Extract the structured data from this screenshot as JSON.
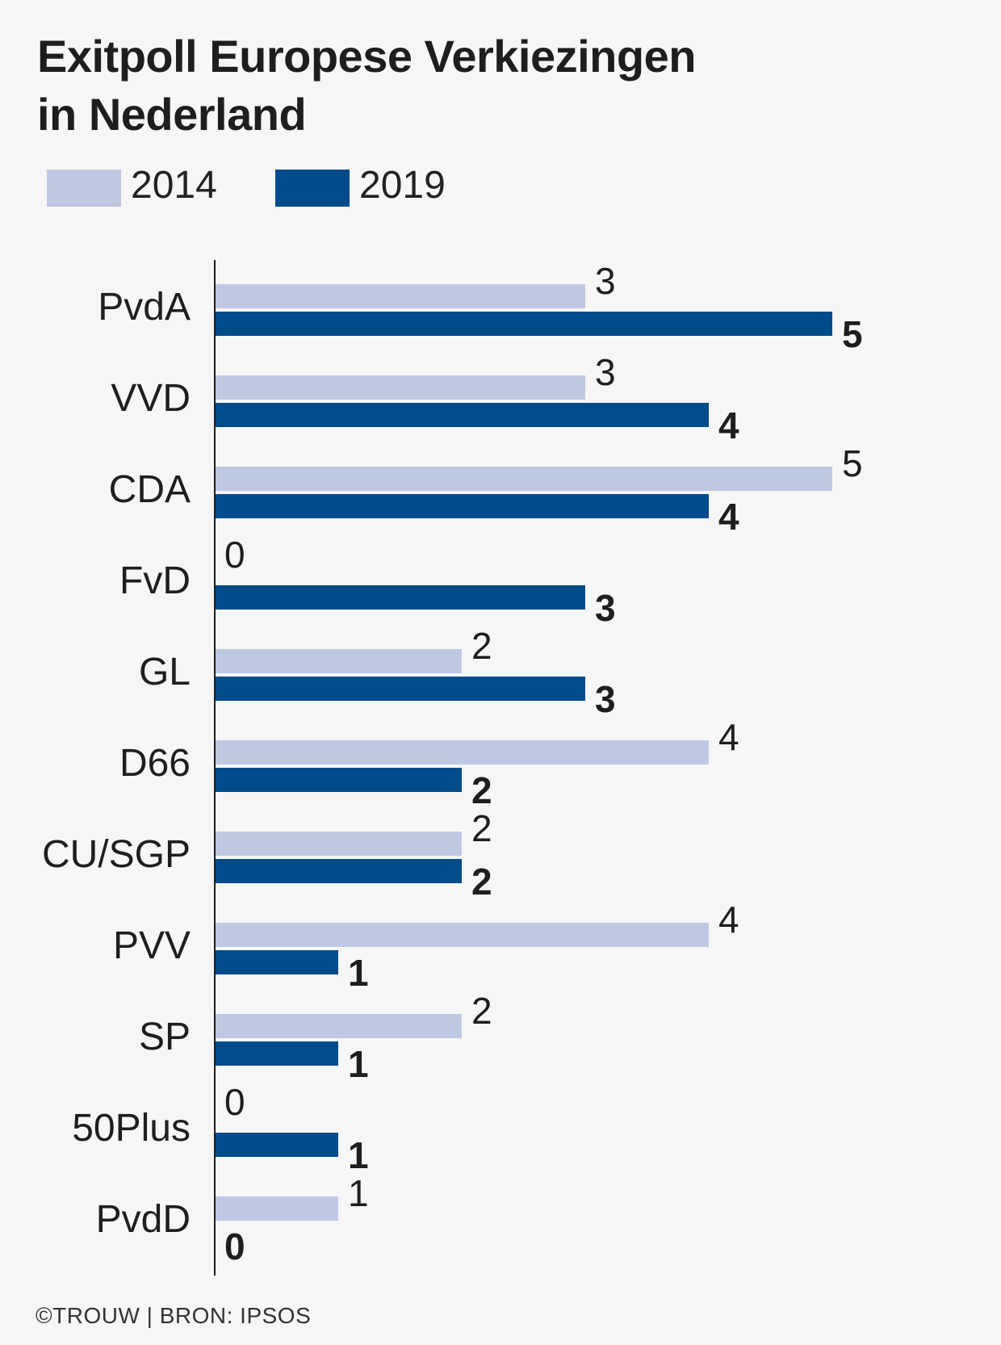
{
  "title": {
    "line1": "Exitpoll Europese Verkiezingen",
    "line2": "in Nederland"
  },
  "legend": [
    {
      "label": "2014",
      "color": "#bfc8e2"
    },
    {
      "label": "2019",
      "color": "#004b8a"
    }
  ],
  "source": "©TROUW | BRON: IPSOS",
  "chart_data": {
    "type": "bar",
    "orientation": "horizontal",
    "title": "Exitpoll Europese Verkiezingen in Nederland",
    "xlabel": "",
    "ylabel": "",
    "xlim": [
      0,
      5
    ],
    "grid": false,
    "categories": [
      "PvdA",
      "VVD",
      "CDA",
      "FvD",
      "GL",
      "D66",
      "CU/SGP",
      "PVV",
      "SP",
      "50Plus",
      "PvdD"
    ],
    "series": [
      {
        "name": "2014",
        "color": "#bfc8e2",
        "values": [
          3,
          3,
          5,
          0,
          2,
          4,
          2,
          4,
          2,
          0,
          1
        ]
      },
      {
        "name": "2019",
        "color": "#004b8a",
        "values": [
          5,
          4,
          4,
          3,
          3,
          2,
          2,
          1,
          1,
          1,
          0
        ]
      }
    ]
  }
}
